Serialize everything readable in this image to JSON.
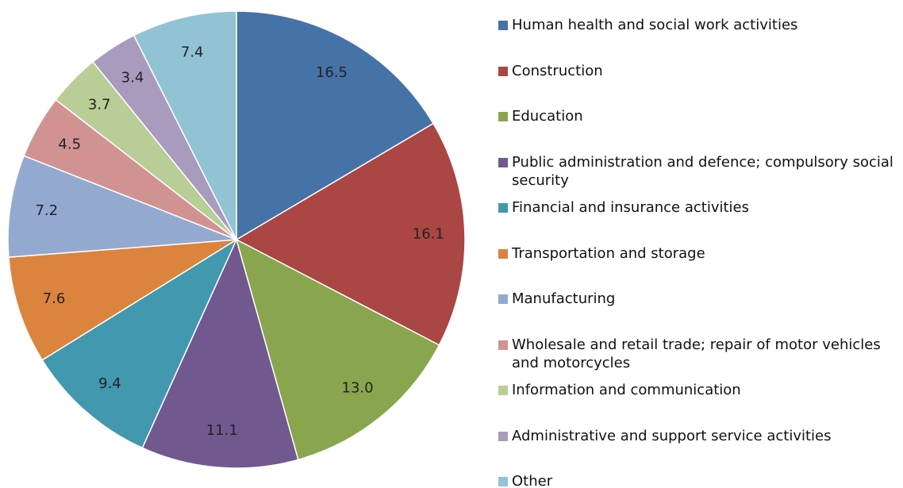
{
  "chart_data": {
    "type": "pie",
    "categories": [
      "Human health and social work activities",
      "Construction",
      "Education",
      "Public administration and defence; compulsory social security",
      "Financial and insurance activities",
      "Transportation and storage",
      "Manufacturing",
      "Wholesale and retail trade; repair of motor vehicles and motorcycles",
      "Information and communication",
      "Administrative and support service activities",
      "Other"
    ],
    "values": [
      16.5,
      16.1,
      13.0,
      11.1,
      9.4,
      7.6,
      7.2,
      4.5,
      3.7,
      3.4,
      7.4
    ],
    "value_labels": [
      "16.5",
      "16.1",
      "13.0",
      "11.1",
      "9.4",
      "7.6",
      "7.2",
      "4.5",
      "3.7",
      "3.4",
      "7.4"
    ],
    "colors": [
      "#4572a7",
      "#aa4643",
      "#89a54e",
      "#71588f",
      "#4198af",
      "#db843d",
      "#93a9cf",
      "#d19392",
      "#b9cd96",
      "#a99bbd",
      "#92c3d5"
    ],
    "legend": "right"
  }
}
